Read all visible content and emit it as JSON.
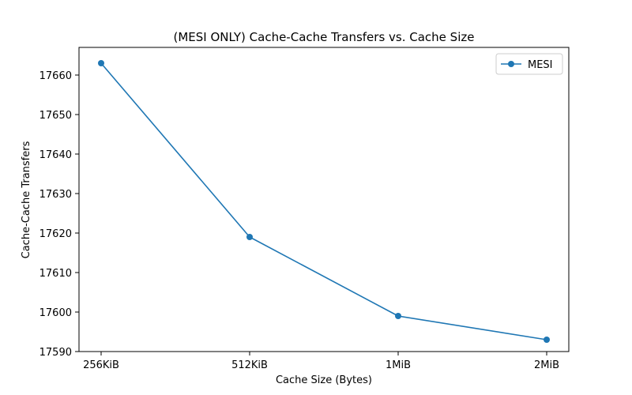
{
  "chart_data": {
    "type": "line",
    "title": "(MESI ONLY) Cache-Cache Transfers vs. Cache Size",
    "xlabel": "Cache Size (Bytes)",
    "ylabel": "Cache-Cache Transfers",
    "categories": [
      "256KiB",
      "512KiB",
      "1MiB",
      "2MiB"
    ],
    "ylim": [
      17590,
      17667
    ],
    "yticks": [
      17590,
      17600,
      17610,
      17620,
      17630,
      17640,
      17650,
      17660
    ],
    "grid": false,
    "legend_position": "top-right",
    "series": [
      {
        "name": "MESI",
        "color": "#1f77b4",
        "marker": "circle",
        "values": [
          17663,
          17619,
          17599,
          17593
        ]
      }
    ]
  }
}
